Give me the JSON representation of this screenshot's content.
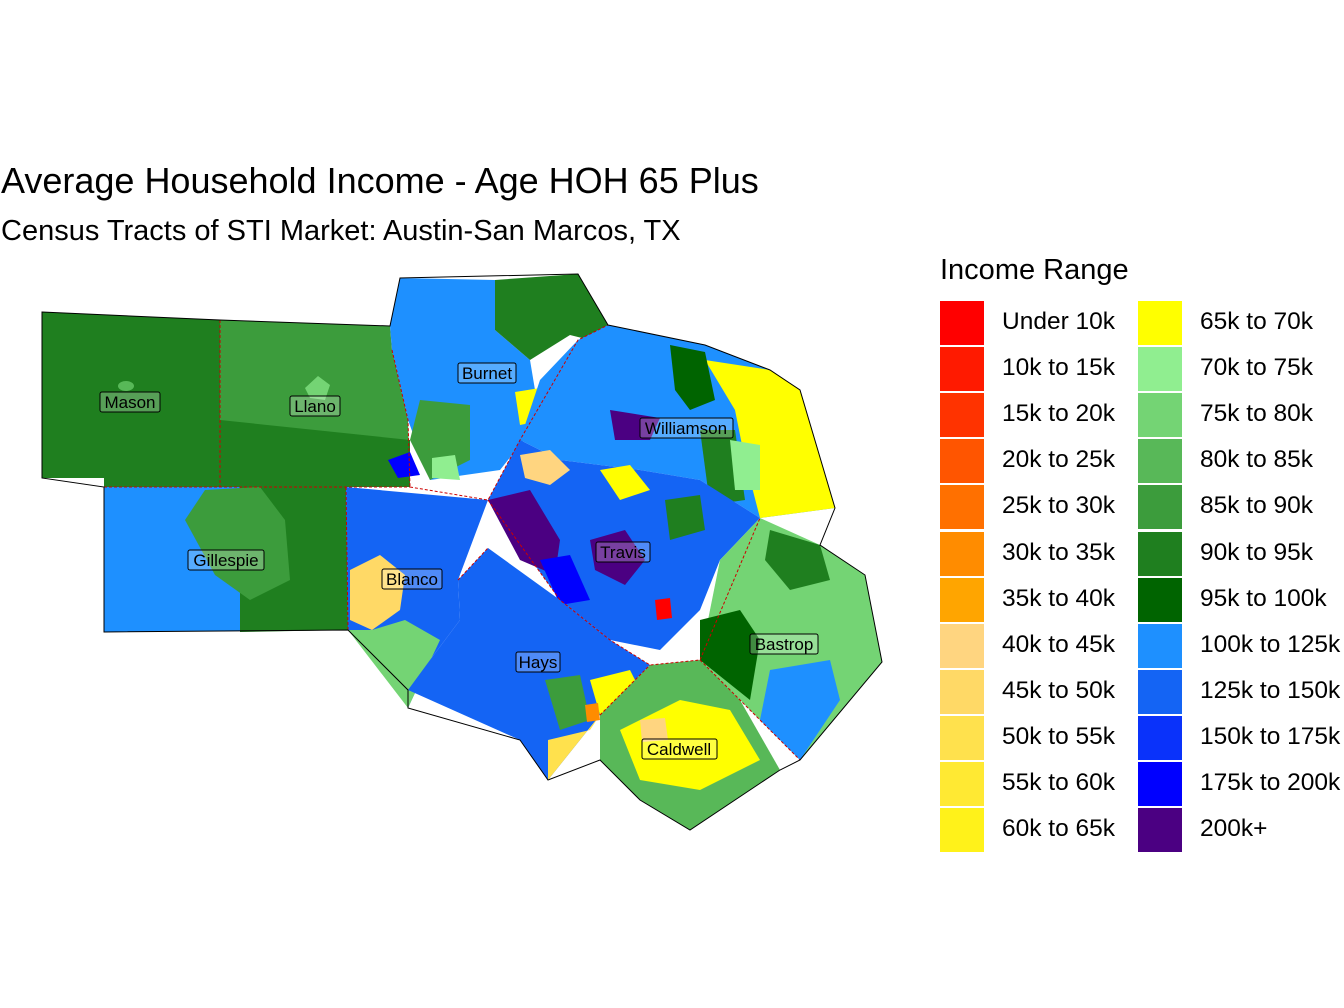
{
  "title": "Average Household Income - Age HOH 65 Plus",
  "subtitle": "Census Tracts of STI Market: Austin-San Marcos, TX",
  "legend": {
    "title": "Income Range",
    "items": [
      {
        "label": "Under 10k",
        "color": "#FF0000"
      },
      {
        "label": "10k to 15k",
        "color": "#FF1A00"
      },
      {
        "label": "15k to 20k",
        "color": "#FF3300"
      },
      {
        "label": "20k to 25k",
        "color": "#FF5500"
      },
      {
        "label": "25k to 30k",
        "color": "#FF7000"
      },
      {
        "label": "30k to 35k",
        "color": "#FF8C00"
      },
      {
        "label": "35k to 40k",
        "color": "#FFA500"
      },
      {
        "label": "40k to 45k",
        "color": "#FFD580"
      },
      {
        "label": "45k to 50k",
        "color": "#FFD966"
      },
      {
        "label": "50k to 55k",
        "color": "#FFE14D"
      },
      {
        "label": "55k to 60k",
        "color": "#FFE933"
      },
      {
        "label": "60k to 65k",
        "color": "#FFF21A"
      },
      {
        "label": "65k to 70k",
        "color": "#FFFF00"
      },
      {
        "label": "70k to 75k",
        "color": "#90EE90"
      },
      {
        "label": "75k to 80k",
        "color": "#74D474"
      },
      {
        "label": "80k to 85k",
        "color": "#58B858"
      },
      {
        "label": "85k to 90k",
        "color": "#3C9C3C"
      },
      {
        "label": "90k to 95k",
        "color": "#1F7F1F"
      },
      {
        "label": "95k to 100k",
        "color": "#006400"
      },
      {
        "label": "100k to 125k",
        "color": "#1E90FF"
      },
      {
        "label": "125k to 150k",
        "color": "#1464F4"
      },
      {
        "label": "150k to 175k",
        "color": "#0A32FA"
      },
      {
        "label": "175k to 200k",
        "color": "#0000FF"
      },
      {
        "label": "200k+",
        "color": "#4B0082"
      }
    ]
  },
  "counties": [
    "Mason",
    "Llano",
    "Burnet",
    "Williamson",
    "Gillespie",
    "Blanco",
    "Travis",
    "Hays",
    "Bastrop",
    "Caldwell"
  ],
  "colors": {
    "county_border": "#CC0000",
    "outline": "#000000"
  }
}
